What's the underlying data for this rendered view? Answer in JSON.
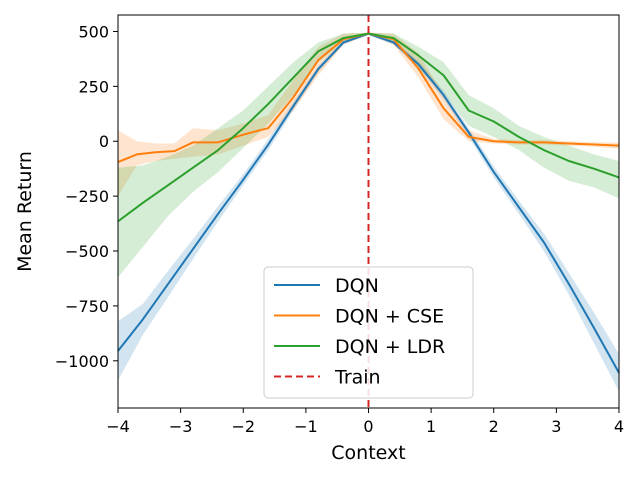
{
  "chart_data": {
    "type": "line",
    "title": "",
    "xlabel": "Context",
    "ylabel": "Mean Return",
    "xlim": [
      -4,
      4
    ],
    "ylim": [
      -1215,
      575
    ],
    "xticks": [
      -4,
      -3,
      -2,
      -1,
      0,
      1,
      2,
      3,
      4
    ],
    "xtick_labels": [
      "−4",
      "−3",
      "−2",
      "−1",
      "0",
      "1",
      "2",
      "3",
      "4"
    ],
    "yticks": [
      500,
      250,
      0,
      -250,
      -500,
      -750,
      -1000
    ],
    "ytick_labels": [
      "500",
      "250",
      "0",
      "−250",
      "−500",
      "−750",
      "−1000"
    ],
    "grid": false,
    "legend_position": "lower-center",
    "series": [
      {
        "name": "DQN",
        "color": "#1f77b4",
        "style": "solid",
        "points": [
          [
            -4,
            -955
          ],
          [
            -3.6,
            -810
          ],
          [
            -3.2,
            -650
          ],
          [
            -2.8,
            -490
          ],
          [
            -2.4,
            -330
          ],
          [
            -2.0,
            -175
          ],
          [
            -1.6,
            -15
          ],
          [
            -1.2,
            160
          ],
          [
            -0.8,
            330
          ],
          [
            -0.4,
            450
          ],
          [
            0,
            490
          ],
          [
            0.4,
            450
          ],
          [
            0.8,
            350
          ],
          [
            1.2,
            210
          ],
          [
            1.6,
            40
          ],
          [
            2.0,
            -140
          ],
          [
            2.4,
            -300
          ],
          [
            2.8,
            -460
          ],
          [
            3.2,
            -650
          ],
          [
            3.6,
            -850
          ],
          [
            4,
            -1055
          ]
        ],
        "band": [
          [
            -4,
            -1090,
            -820
          ],
          [
            -3.6,
            -880,
            -740
          ],
          [
            -3.2,
            -710,
            -590
          ],
          [
            -2.8,
            -535,
            -445
          ],
          [
            -2.4,
            -365,
            -295
          ],
          [
            -2.0,
            -200,
            -150
          ],
          [
            -1.6,
            -40,
            10
          ],
          [
            -1.2,
            140,
            180
          ],
          [
            -0.8,
            315,
            345
          ],
          [
            -0.4,
            440,
            460
          ],
          [
            0,
            485,
            495
          ],
          [
            0.4,
            440,
            460
          ],
          [
            0.8,
            335,
            365
          ],
          [
            1.2,
            190,
            230
          ],
          [
            1.6,
            20,
            60
          ],
          [
            2.0,
            -165,
            -115
          ],
          [
            2.4,
            -330,
            -270
          ],
          [
            2.8,
            -500,
            -420
          ],
          [
            3.2,
            -700,
            -600
          ],
          [
            3.6,
            -920,
            -780
          ],
          [
            4,
            -1140,
            -970
          ]
        ]
      },
      {
        "name": "DQN + CSE",
        "color": "#ff7f0e",
        "style": "solid",
        "points": [
          [
            -4,
            -95
          ],
          [
            -3.7,
            -60
          ],
          [
            -3.4,
            -50
          ],
          [
            -3.1,
            -45
          ],
          [
            -2.8,
            -5
          ],
          [
            -2.4,
            -5
          ],
          [
            -2.0,
            30
          ],
          [
            -1.6,
            60
          ],
          [
            -1.2,
            200
          ],
          [
            -0.8,
            370
          ],
          [
            -0.4,
            465
          ],
          [
            0,
            490
          ],
          [
            0.4,
            465
          ],
          [
            0.8,
            330
          ],
          [
            1.2,
            150
          ],
          [
            1.6,
            20
          ],
          [
            2.0,
            0
          ],
          [
            2.4,
            -5
          ],
          [
            2.8,
            -5
          ],
          [
            3.2,
            -10
          ],
          [
            3.6,
            -15
          ],
          [
            4,
            -20
          ]
        ],
        "band": [
          [
            -4,
            -250,
            50
          ],
          [
            -3.7,
            -110,
            0
          ],
          [
            -3.4,
            -90,
            -10
          ],
          [
            -3.1,
            -80,
            -10
          ],
          [
            -2.8,
            -70,
            60
          ],
          [
            -2.4,
            -60,
            50
          ],
          [
            -2.0,
            -20,
            80
          ],
          [
            -1.6,
            20,
            120
          ],
          [
            -1.2,
            140,
            280
          ],
          [
            -0.8,
            300,
            430
          ],
          [
            -0.4,
            440,
            490
          ],
          [
            0,
            485,
            495
          ],
          [
            0.4,
            440,
            490
          ],
          [
            0.8,
            290,
            400
          ],
          [
            1.2,
            100,
            210
          ],
          [
            1.6,
            0,
            50
          ],
          [
            2.0,
            -10,
            10
          ],
          [
            2.4,
            -15,
            5
          ],
          [
            2.8,
            -15,
            5
          ],
          [
            3.2,
            -20,
            0
          ],
          [
            3.6,
            -25,
            -5
          ],
          [
            4,
            -35,
            -5
          ]
        ]
      },
      {
        "name": "DQN + LDR",
        "color": "#2ca02c",
        "style": "solid",
        "points": [
          [
            -4,
            -365
          ],
          [
            -3.6,
            -280
          ],
          [
            -3.2,
            -200
          ],
          [
            -2.8,
            -120
          ],
          [
            -2.4,
            -40
          ],
          [
            -2.0,
            60
          ],
          [
            -1.6,
            170
          ],
          [
            -1.2,
            290
          ],
          [
            -0.8,
            410
          ],
          [
            -0.4,
            470
          ],
          [
            0,
            490
          ],
          [
            0.4,
            470
          ],
          [
            0.8,
            390
          ],
          [
            1.2,
            300
          ],
          [
            1.6,
            140
          ],
          [
            2.0,
            90
          ],
          [
            2.4,
            20
          ],
          [
            2.8,
            -40
          ],
          [
            3.2,
            -90
          ],
          [
            3.6,
            -125
          ],
          [
            4,
            -165
          ]
        ],
        "band": [
          [
            -4,
            -620,
            -120
          ],
          [
            -3.6,
            -480,
            -110
          ],
          [
            -3.2,
            -340,
            -70
          ],
          [
            -2.8,
            -230,
            -20
          ],
          [
            -2.4,
            -140,
            60
          ],
          [
            -2.0,
            -30,
            140
          ],
          [
            -1.6,
            80,
            250
          ],
          [
            -1.2,
            210,
            360
          ],
          [
            -0.8,
            360,
            450
          ],
          [
            -0.4,
            450,
            490
          ],
          [
            0,
            485,
            495
          ],
          [
            0.4,
            450,
            490
          ],
          [
            0.8,
            330,
            430
          ],
          [
            1.2,
            220,
            360
          ],
          [
            1.6,
            70,
            210
          ],
          [
            2.0,
            20,
            150
          ],
          [
            2.4,
            -40,
            70
          ],
          [
            2.8,
            -120,
            20
          ],
          [
            3.2,
            -180,
            -20
          ],
          [
            3.6,
            -210,
            -60
          ],
          [
            4,
            -260,
            -90
          ]
        ]
      },
      {
        "name": "Train",
        "color": "#d62728",
        "style": "dashed",
        "vline_x": 0
      }
    ]
  }
}
